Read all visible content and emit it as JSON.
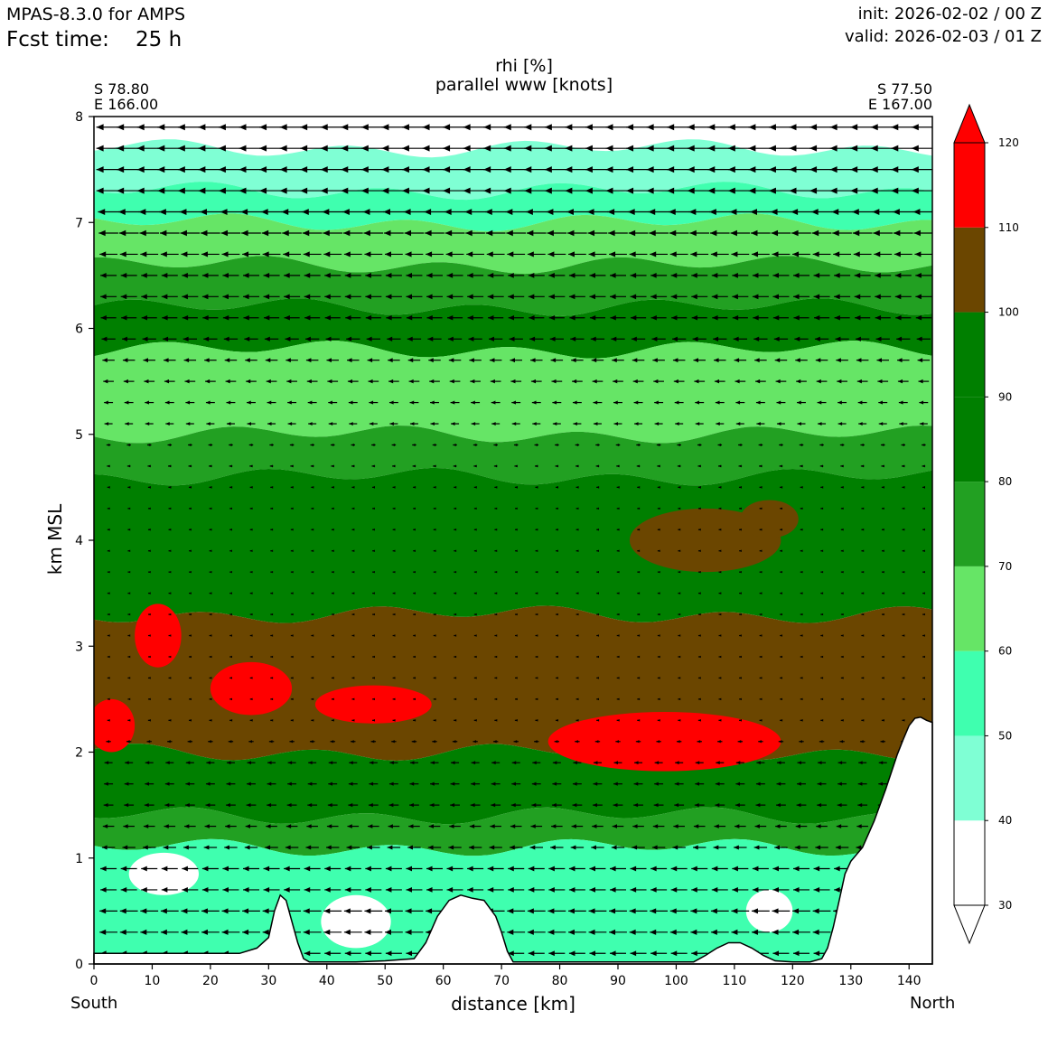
{
  "header": {
    "model": "MPAS-8.3.0 for AMPS",
    "fcst_label": "Fcst time:",
    "fcst_value": "25 h",
    "init": "init: 2026-02-02 / 00 Z",
    "valid": "valid: 2026-02-03 / 01 Z"
  },
  "chart_data": {
    "type": "heatmap",
    "title": "rhi [%]",
    "subtitle": "parallel www [knots]",
    "xlabel": "distance [km]",
    "ylabel": "km MSL",
    "xlim": [
      0,
      144
    ],
    "ylim": [
      0,
      8
    ],
    "x_ticks": [
      0,
      10,
      20,
      30,
      40,
      50,
      60,
      70,
      80,
      90,
      100,
      110,
      120,
      130,
      140
    ],
    "y_ticks": [
      0,
      1,
      2,
      3,
      4,
      5,
      6,
      7,
      8
    ],
    "left_end": {
      "lat": "S 78.80",
      "lon": "E 166.00",
      "direction": "South"
    },
    "right_end": {
      "lat": "S 77.50",
      "lon": "E 167.00",
      "direction": "North"
    },
    "colorbar": {
      "levels": [
        30,
        40,
        50,
        60,
        70,
        80,
        90,
        100,
        110,
        120
      ],
      "colors": [
        "#ffffff",
        "#7fffd4",
        "#3fffaf",
        "#66e566",
        "#22a022",
        "#007f00",
        "#007f00",
        "#6b4600",
        "#ff0000"
      ],
      "extend": "both"
    },
    "terrain_profile": {
      "x": [
        0,
        25,
        28,
        30,
        31,
        32,
        33,
        34,
        35,
        36,
        37,
        45,
        50,
        55,
        57,
        59,
        61,
        63,
        65,
        67,
        69,
        70,
        71,
        72,
        80,
        100,
        103,
        105,
        107,
        109,
        111,
        113,
        115,
        117,
        120,
        123,
        125,
        126,
        127,
        128,
        129,
        130,
        132,
        134,
        136,
        138,
        139,
        140,
        141,
        142,
        143,
        144
      ],
      "y": [
        0.1,
        0.1,
        0.15,
        0.25,
        0.5,
        0.65,
        0.6,
        0.4,
        0.2,
        0.05,
        0.02,
        0.02,
        0.03,
        0.05,
        0.2,
        0.45,
        0.6,
        0.65,
        0.62,
        0.6,
        0.45,
        0.3,
        0.12,
        0.02,
        0.02,
        0.02,
        0.02,
        0.08,
        0.15,
        0.2,
        0.2,
        0.15,
        0.08,
        0.03,
        0.02,
        0.02,
        0.05,
        0.15,
        0.35,
        0.6,
        0.85,
        0.97,
        1.1,
        1.35,
        1.65,
        1.98,
        2.12,
        2.25,
        2.32,
        2.33,
        2.3,
        2.28
      ]
    },
    "rhi_bands": [
      {
        "name": "white-top",
        "value": 35,
        "z_bottom": 7.7,
        "z_top": 8.0
      },
      {
        "name": "aqua-upper",
        "value": 45,
        "z_bottom": 7.3,
        "z_top": 7.7
      },
      {
        "name": "green-upper",
        "value": 55,
        "z_bottom": 7.0,
        "z_top": 7.3
      },
      {
        "name": "lightgreen",
        "value": 65,
        "z_bottom": 6.6,
        "z_top": 7.0
      },
      {
        "name": "midgreen",
        "value": 75,
        "z_bottom": 6.2,
        "z_top": 6.6
      },
      {
        "name": "darkgreen-upper",
        "value": 85,
        "z_bottom": 5.8,
        "z_top": 6.2
      },
      {
        "name": "lightgreen-mid",
        "value": 65,
        "z_bottom": 5.0,
        "z_top": 5.8
      },
      {
        "name": "midgreen-mid",
        "value": 75,
        "z_bottom": 4.6,
        "z_top": 5.0
      },
      {
        "name": "darkgreen-mid",
        "value": 90,
        "z_bottom": 3.3,
        "z_top": 4.6
      },
      {
        "name": "brown",
        "value": 105,
        "z_bottom": 2.0,
        "z_top": 3.3
      },
      {
        "name": "darkgreen-low",
        "value": 90,
        "z_bottom": 1.4,
        "z_top": 2.0
      },
      {
        "name": "midgreen-low",
        "value": 75,
        "z_bottom": 1.1,
        "z_top": 1.4
      },
      {
        "name": "aqua-low",
        "value": 50,
        "z_bottom": 0.0,
        "z_top": 1.1
      }
    ],
    "wind_rows": [
      {
        "z": 7.9,
        "speed": 3
      },
      {
        "z": 7.7,
        "speed": 3
      },
      {
        "z": 7.5,
        "speed": 3
      },
      {
        "z": 7.3,
        "speed": 3
      },
      {
        "z": 7.1,
        "speed": 2.6
      },
      {
        "z": 6.9,
        "speed": 2.4
      },
      {
        "z": 6.7,
        "speed": 2.2
      },
      {
        "z": 6.5,
        "speed": 2
      },
      {
        "z": 6.3,
        "speed": 2
      },
      {
        "z": 6.1,
        "speed": 1.9
      },
      {
        "z": 5.9,
        "speed": 1.7
      },
      {
        "z": 5.7,
        "speed": 1.5
      },
      {
        "z": 5.5,
        "speed": 1.3
      },
      {
        "z": 5.3,
        "speed": 1.1
      },
      {
        "z": 5.1,
        "speed": 1
      },
      {
        "z": 4.9,
        "speed": 0.5
      },
      {
        "z": 4.7,
        "speed": 0.4
      },
      {
        "z": 4.5,
        "speed": 0.3
      },
      {
        "z": 4.3,
        "speed": 0.2
      },
      {
        "z": 4.1,
        "speed": 0.2
      },
      {
        "z": 3.9,
        "speed": 0.2
      },
      {
        "z": 3.7,
        "speed": 0.2
      },
      {
        "z": 3.5,
        "speed": 0.2
      },
      {
        "z": 3.3,
        "speed": 0.2
      },
      {
        "z": 3.1,
        "speed": 0.2
      },
      {
        "z": 2.9,
        "speed": 0.2
      },
      {
        "z": 2.7,
        "speed": 0.2
      },
      {
        "z": 2.5,
        "speed": 0.2
      },
      {
        "z": 2.3,
        "speed": 0.3
      },
      {
        "z": 2.1,
        "speed": 0.6
      },
      {
        "z": 1.9,
        "speed": 1
      },
      {
        "z": 1.7,
        "speed": 1.1
      },
      {
        "z": 1.5,
        "speed": 1.2
      },
      {
        "z": 1.3,
        "speed": 1.4
      },
      {
        "z": 1.1,
        "speed": 1.6
      },
      {
        "z": 0.9,
        "speed": 2
      },
      {
        "z": 0.7,
        "speed": 2
      },
      {
        "z": 0.5,
        "speed": 2.2
      },
      {
        "z": 0.3,
        "speed": 2.2
      },
      {
        "z": 0.1,
        "speed": 2
      }
    ]
  }
}
